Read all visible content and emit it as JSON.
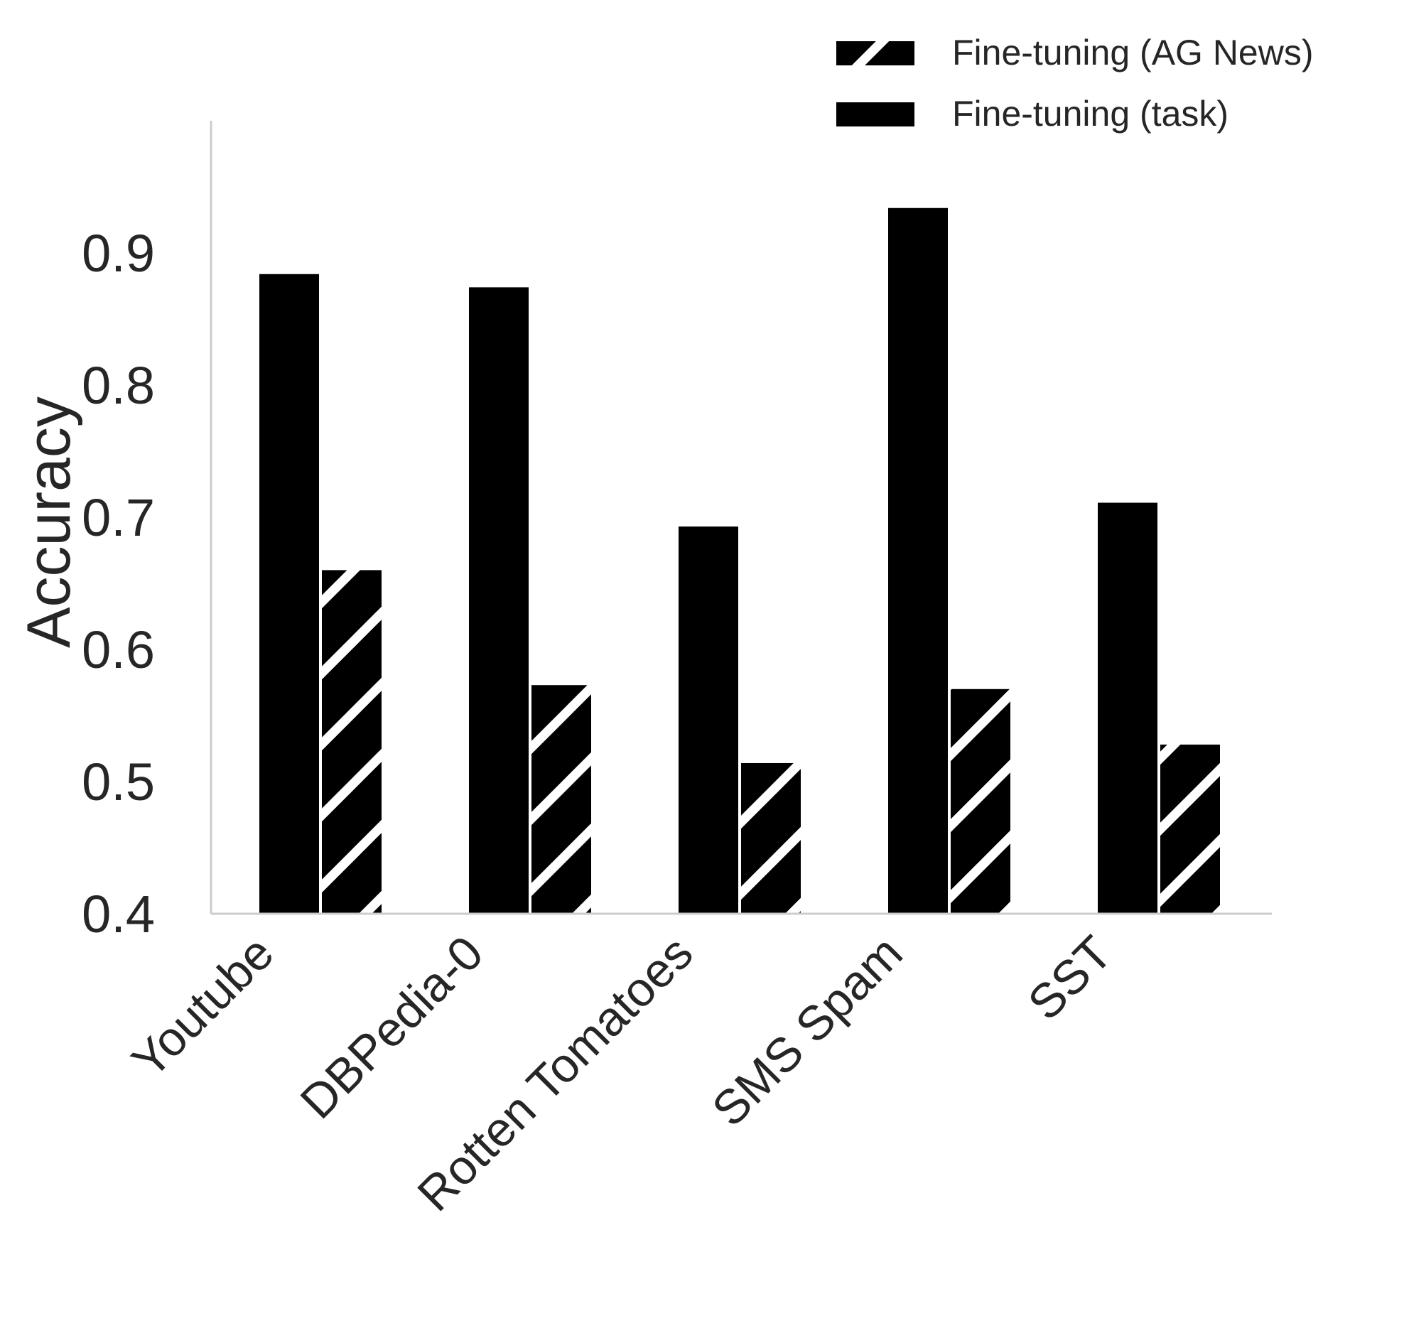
{
  "chart_data": {
    "type": "bar",
    "ylabel": "Accuracy",
    "xlabel": "",
    "ylim": [
      0.4,
      1.0
    ],
    "yticks": [
      0.4,
      0.5,
      0.6,
      0.7,
      0.8,
      0.9
    ],
    "ytick_labels": [
      "0.4",
      "0.5",
      "0.6",
      "0.7",
      "0.8",
      "0.9"
    ],
    "categories": [
      "Youtube",
      "DBPedia-0",
      "Rotten Tomatoes",
      "SMS Spam",
      "SST"
    ],
    "series": [
      {
        "name": "Fine-tuning (task)",
        "pattern": "solid",
        "color": "#000000",
        "values": [
          0.884,
          0.874,
          0.693,
          0.934,
          0.711
        ]
      },
      {
        "name": "Fine-tuning (AG News)",
        "pattern": "hatch",
        "color": "#000000",
        "values": [
          0.66,
          0.573,
          0.514,
          0.57,
          0.528
        ]
      }
    ],
    "legend": {
      "position": "top-right",
      "order": [
        "Fine-tuning (AG News)",
        "Fine-tuning (task)"
      ]
    },
    "grid": false,
    "spine_color": "#cccccc"
  }
}
